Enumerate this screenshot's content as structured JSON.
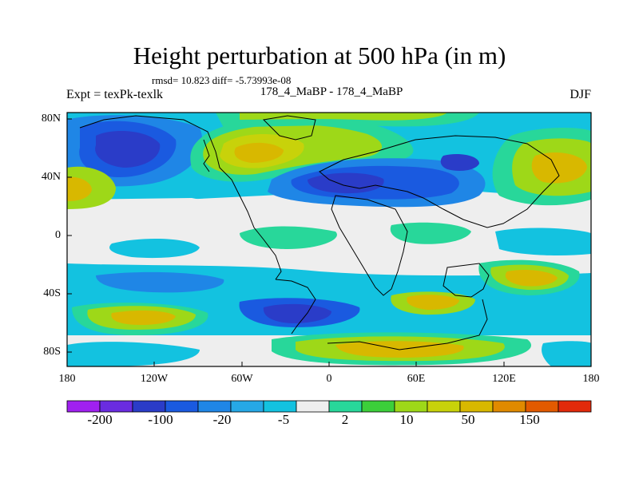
{
  "title": "Height perturbation at 500 hPa (in m)",
  "stats_line": "rmsd= 10.823 diff= -5.73993e-08",
  "left_label": "Expt = texPk-texlk",
  "center_label": "178_4_MaBP - 178_4_MaBP",
  "right_label": "DJF",
  "lat_ticks": [
    "80N",
    "40N",
    "0",
    "40S",
    "80S"
  ],
  "lon_ticks": [
    "180",
    "120W",
    "60W",
    "0",
    "60E",
    "120E",
    "180"
  ],
  "colorbar": {
    "colors": [
      "#a020f0",
      "#6a2ce0",
      "#2a3cc8",
      "#1a5ae0",
      "#1f86e6",
      "#26a8e6",
      "#13c2e0",
      "#eeeeee",
      "#28d79a",
      "#3ccf3a",
      "#9ed818",
      "#c8d20a",
      "#d8b800",
      "#e08a00",
      "#e25a00",
      "#e22a0a"
    ],
    "labels": [
      "-200",
      "-100",
      "-20",
      "-5",
      "2",
      "10",
      "50",
      "150"
    ]
  },
  "field_levels": {
    "dark_blue": "#2a3cc8",
    "blue": "#1a5ae0",
    "mid_blue": "#1f86e6",
    "light_blue": "#26a8e6",
    "cyan": "#13c2e0",
    "neutral": "#eeeeee",
    "teal_green": "#28d79a",
    "green": "#3ccf3a",
    "yellow_green": "#9ed818",
    "olive": "#c8d20a",
    "gold": "#d8b800"
  }
}
